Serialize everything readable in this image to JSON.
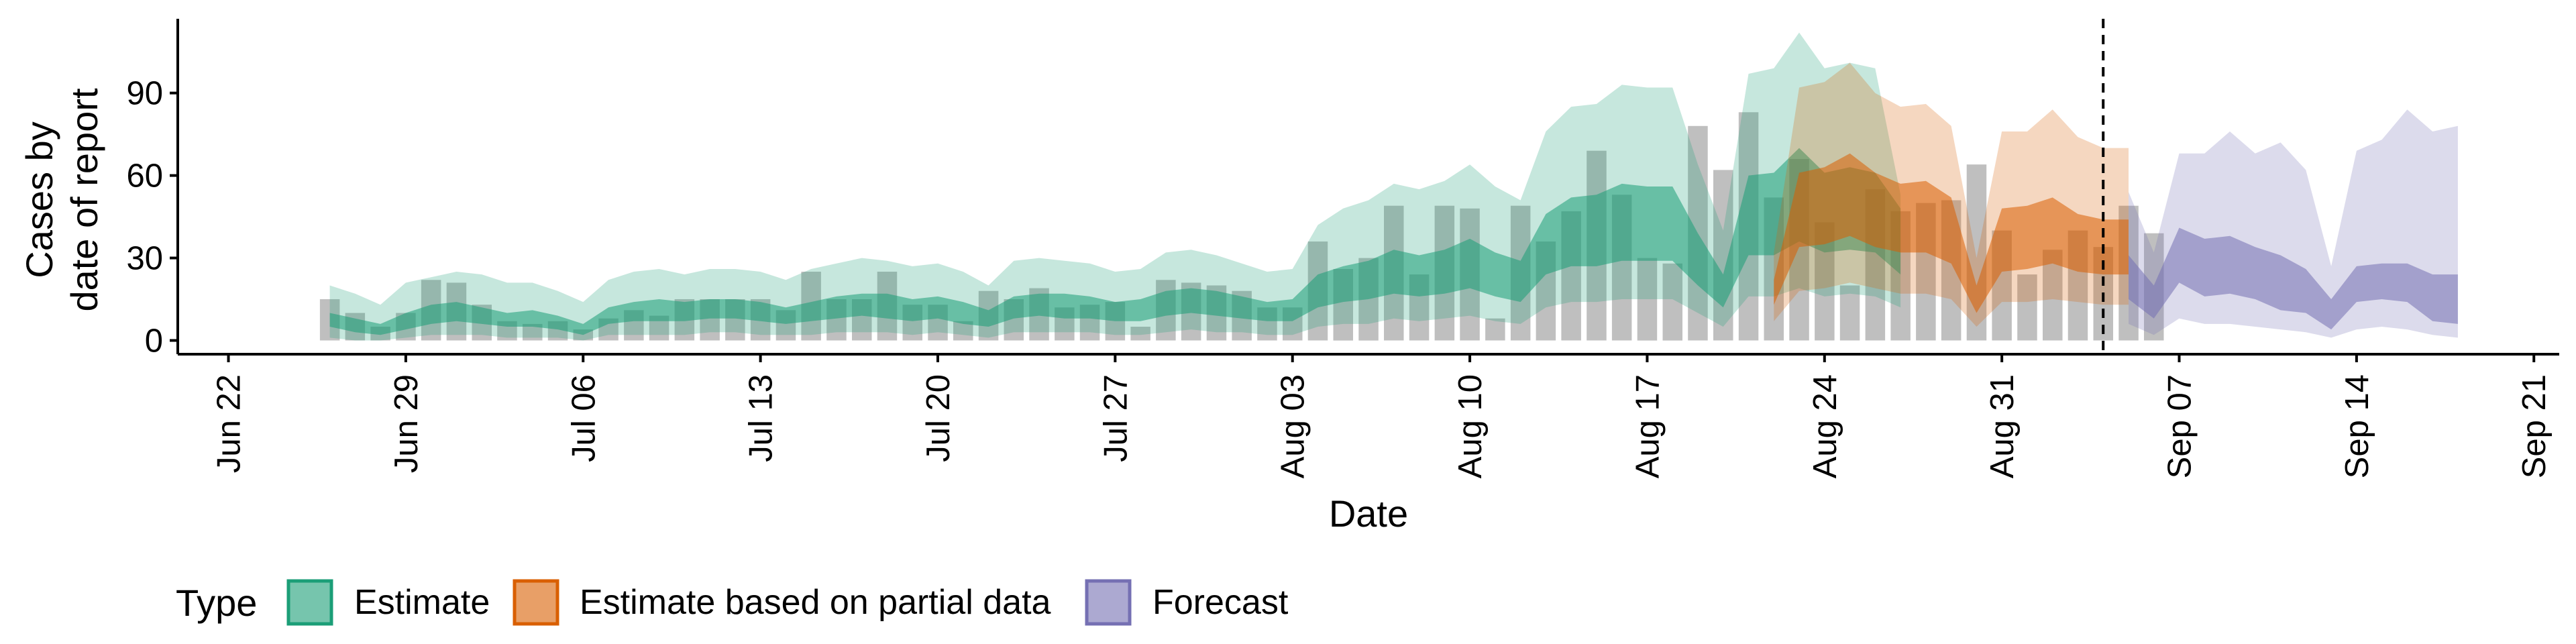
{
  "chart_data": {
    "type": "area",
    "xlabel": "Date",
    "ylabel_lines": [
      "Cases by",
      "date of report"
    ],
    "ylim": [
      -5,
      117
    ],
    "yticks": [
      0,
      30,
      60,
      90
    ],
    "xlim": [
      "2020-06-20",
      "2020-09-22"
    ],
    "xticks": [
      {
        "date": "2020-06-22",
        "label": "Jun 22"
      },
      {
        "date": "2020-06-29",
        "label": "Jun 29"
      },
      {
        "date": "2020-07-06",
        "label": "Jul 06"
      },
      {
        "date": "2020-07-13",
        "label": "Jul 13"
      },
      {
        "date": "2020-07-20",
        "label": "Jul 20"
      },
      {
        "date": "2020-07-27",
        "label": "Jul 27"
      },
      {
        "date": "2020-08-03",
        "label": "Aug 03"
      },
      {
        "date": "2020-08-10",
        "label": "Aug 10"
      },
      {
        "date": "2020-08-17",
        "label": "Aug 17"
      },
      {
        "date": "2020-08-24",
        "label": "Aug 24"
      },
      {
        "date": "2020-08-31",
        "label": "Aug 31"
      },
      {
        "date": "2020-09-07",
        "label": "Sep 07"
      },
      {
        "date": "2020-09-14",
        "label": "Sep 14"
      },
      {
        "date": "2020-09-21",
        "label": "Sep 21"
      }
    ],
    "vline_date": "2020-09-04",
    "bars": {
      "start_date": "2020-06-26",
      "values": [
        15,
        10,
        5,
        10,
        22,
        21,
        13,
        7,
        6,
        7,
        4,
        8,
        11,
        9,
        15,
        15,
        15,
        15,
        11,
        25,
        15,
        15,
        25,
        13,
        13,
        7,
        18,
        15,
        19,
        12,
        13,
        14,
        5,
        22,
        21,
        20,
        18,
        12,
        12,
        36,
        26,
        30,
        49,
        24,
        49,
        48,
        8,
        49,
        36,
        47,
        69,
        53,
        30,
        28,
        78,
        62,
        83,
        52,
        66,
        43,
        20,
        55,
        47,
        50,
        51,
        64,
        40,
        24,
        33,
        40,
        34,
        49,
        39
      ]
    },
    "series": [
      {
        "name": "Estimate",
        "color": "#1B9E77",
        "start_date": "2020-06-26",
        "outer_upper": [
          20,
          17,
          13,
          21,
          23,
          25,
          24,
          21,
          21,
          18,
          14,
          22,
          25,
          26,
          24,
          26,
          26,
          25,
          22,
          26,
          28,
          30,
          29,
          27,
          28,
          25,
          20,
          29,
          30,
          29,
          28,
          25,
          26,
          32,
          33,
          31,
          28,
          25,
          26,
          42,
          48,
          51,
          57,
          55,
          58,
          64,
          56,
          51,
          76,
          85,
          86,
          93,
          92,
          92,
          64,
          40,
          97,
          99,
          112,
          99,
          101,
          99,
          53
        ],
        "inner_upper": [
          10,
          8,
          6,
          10,
          13,
          14,
          12,
          10,
          11,
          9,
          6,
          12,
          14,
          15,
          14,
          15,
          15,
          14,
          12,
          14,
          16,
          17,
          17,
          15,
          16,
          14,
          11,
          16,
          17,
          17,
          16,
          14,
          15,
          18,
          19,
          18,
          16,
          14,
          15,
          24,
          27,
          29,
          33,
          31,
          33,
          37,
          32,
          29,
          46,
          52,
          53,
          57,
          56,
          56,
          39,
          24,
          60,
          61,
          70,
          61,
          63,
          61,
          48
        ],
        "inner_lower": [
          5,
          3,
          2,
          4,
          6,
          7,
          6,
          5,
          5,
          4,
          2,
          6,
          7,
          7,
          7,
          8,
          8,
          7,
          6,
          7,
          8,
          9,
          8,
          7,
          8,
          6,
          5,
          8,
          9,
          8,
          8,
          7,
          7,
          9,
          10,
          9,
          8,
          7,
          7,
          12,
          14,
          15,
          17,
          16,
          17,
          19,
          16,
          14,
          24,
          27,
          27,
          29,
          29,
          29,
          20,
          12,
          31,
          31,
          36,
          32,
          33,
          32,
          24
        ],
        "outer_lower": [
          1,
          0,
          0,
          1,
          2,
          2,
          2,
          1,
          1,
          1,
          0,
          2,
          2,
          2,
          2,
          3,
          3,
          2,
          2,
          2,
          3,
          3,
          3,
          2,
          3,
          2,
          1,
          3,
          3,
          3,
          3,
          2,
          2,
          3,
          4,
          3,
          3,
          2,
          2,
          5,
          6,
          6,
          8,
          7,
          8,
          9,
          7,
          6,
          12,
          14,
          14,
          15,
          15,
          15,
          10,
          5,
          16,
          16,
          19,
          16,
          17,
          16,
          12
        ]
      },
      {
        "name": "Estimate based on partial data",
        "color": "#D95F02",
        "start_date": "2020-08-22",
        "outer_upper": [
          32,
          92,
          94,
          101,
          90,
          85,
          86,
          78,
          30,
          76,
          76,
          84,
          74,
          70,
          70
        ],
        "inner_upper": [
          22,
          61,
          63,
          68,
          61,
          57,
          58,
          52,
          20,
          48,
          49,
          52,
          46,
          44,
          44
        ],
        "inner_lower": [
          13,
          34,
          35,
          38,
          34,
          32,
          32,
          28,
          10,
          25,
          26,
          28,
          25,
          24,
          24
        ],
        "outer_lower": [
          7,
          18,
          19,
          21,
          19,
          17,
          17,
          15,
          5,
          14,
          14,
          15,
          14,
          13,
          13
        ]
      },
      {
        "name": "Forecast",
        "color": "#7570B3",
        "start_date": "2020-09-05",
        "outer_upper": [
          54,
          32,
          68,
          68,
          76,
          68,
          72,
          62,
          27,
          69,
          73,
          84,
          76,
          78
        ],
        "inner_upper": [
          31,
          20,
          41,
          37,
          38,
          34,
          31,
          26,
          15,
          27,
          28,
          28,
          24,
          24
        ],
        "inner_lower": [
          15,
          8,
          21,
          16,
          17,
          15,
          11,
          10,
          4,
          14,
          15,
          14,
          7,
          6
        ],
        "outer_lower": [
          6,
          2,
          8,
          6,
          6,
          5,
          4,
          3,
          1,
          4,
          5,
          4,
          2,
          1
        ]
      }
    ],
    "legend": {
      "title": "Type",
      "position": "bottom",
      "items": [
        {
          "label": "Estimate",
          "color": "#1B9E77"
        },
        {
          "label": "Estimate based on partial data",
          "color": "#D95F02"
        },
        {
          "label": "Forecast",
          "color": "#7570B3"
        }
      ]
    }
  }
}
